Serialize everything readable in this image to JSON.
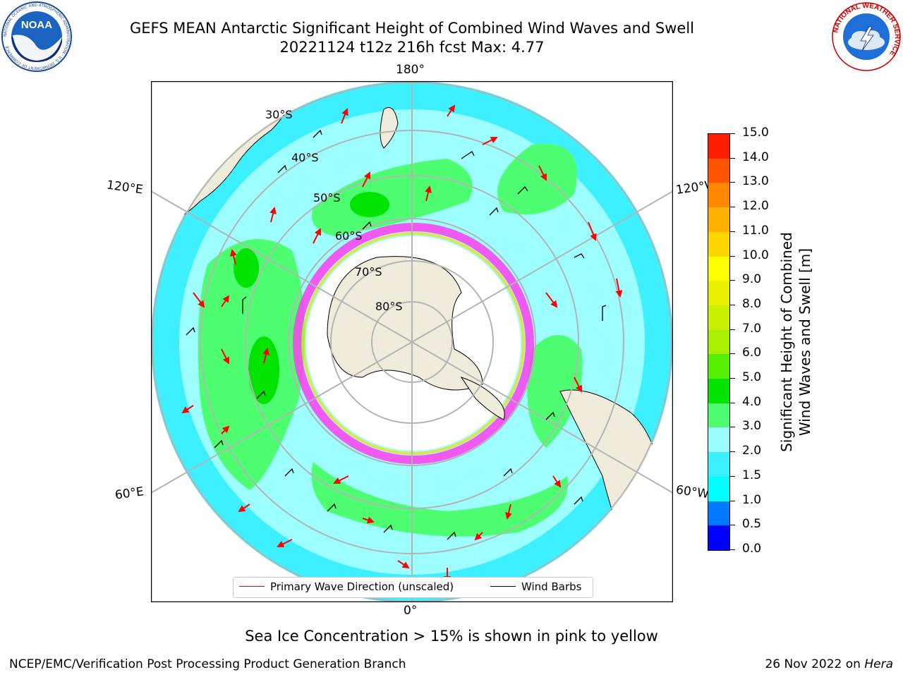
{
  "header": {
    "title_line1": "GEFS MEAN Antarctic Significant Height of Combined Wind Waves and Swell",
    "title_line2": "20221124 t12z 216h fcst   Max: 4.77"
  },
  "logos": {
    "left": {
      "icon": "noaa-logo-icon",
      "text": "NOAA",
      "ring_text": "NATIONAL OCEANIC AND ATMOSPHERIC ADMINISTRATION · U.S. DEPARTMENT OF COMMERCE"
    },
    "right": {
      "icon": "nws-logo-icon",
      "ring_text": "NATIONAL WEATHER SERVICE"
    }
  },
  "map": {
    "projection": "south polar stereographic",
    "longitude_labels": {
      "top": "180°",
      "bottom": "0°",
      "upper_left": "120°E",
      "upper_right": "120°W",
      "lower_left": "60°E",
      "lower_right": "60°W"
    },
    "latitude_labels": [
      "30°S",
      "40°S",
      "50°S",
      "60°S",
      "70°S",
      "80°S"
    ],
    "colors": {
      "land": "#efecdc",
      "ocean_low": "#00ffff",
      "ocean_mid": "#9cfeff",
      "wave_3_4": "#4dff70",
      "wave_4_5": "#00e400",
      "sea_ice": "#ffffff",
      "ice_edge": "#ff3cf0",
      "arrow": "#ff0000",
      "barb": "#000000",
      "grid": "#b4b4b4"
    }
  },
  "colorbar": {
    "label_line1": "Significant Height of Combined",
    "label_line2": "Wind Waves and Swell [m]",
    "ticks": [
      "0.0",
      "0.5",
      "1.0",
      "1.5",
      "2.0",
      "3.0",
      "4.0",
      "5.0",
      "6.0",
      "7.0",
      "8.0",
      "9.0",
      "10.0",
      "11.0",
      "12.0",
      "13.0",
      "14.0",
      "15.0"
    ],
    "colors": [
      "#0000ff",
      "#0078ff",
      "#00ffff",
      "#3cf0ff",
      "#9cfeff",
      "#4dff70",
      "#00e400",
      "#55ee00",
      "#a8f000",
      "#c8f000",
      "#e8f000",
      "#ffff00",
      "#ffd700",
      "#ffb000",
      "#ff8800",
      "#ff5500",
      "#ff1e00"
    ]
  },
  "legend": {
    "wave_direction": "Primary Wave Direction (unscaled)",
    "wind_barbs": "Wind Barbs",
    "wave_color": "#ff0000",
    "barb_color": "#000000"
  },
  "notes": {
    "sea_ice": "Sea Ice Concentration > 15% is shown in pink to yellow",
    "footer_left": "NCEP/EMC/Verification Post Processing Product Generation Branch",
    "footer_date": "26 Nov 2022 on ",
    "footer_machine": "Hera"
  }
}
